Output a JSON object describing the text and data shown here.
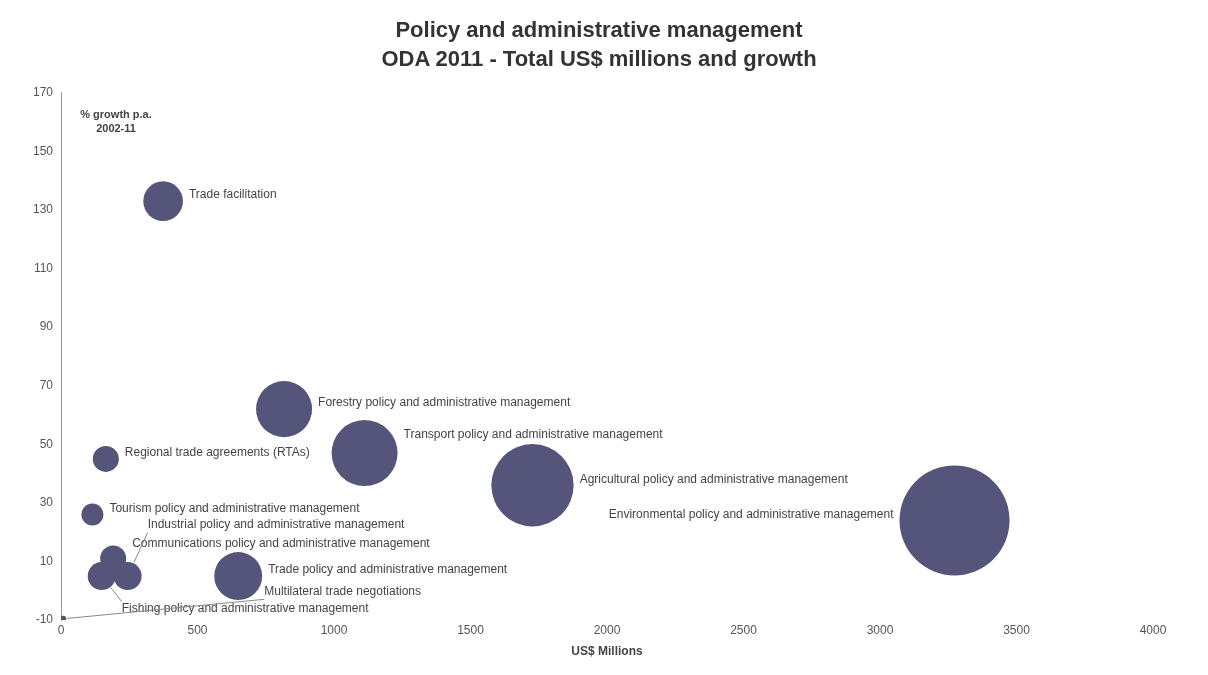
{
  "chart_data": {
    "type": "bubble",
    "title": "Policy and administrative management",
    "subtitle": "ODA 2011 - Total US$ millions and growth",
    "xlabel": "US$ Millions",
    "ylabel": "% growth p.a. 2002-11",
    "xlim": [
      0,
      4000
    ],
    "xticks": [
      0,
      500,
      1000,
      1500,
      2000,
      2500,
      3000,
      3500,
      4000
    ],
    "ylim": [
      -10,
      170
    ],
    "yticks": [
      -10,
      10,
      30,
      50,
      70,
      90,
      110,
      130,
      150,
      170
    ],
    "grid": false,
    "legend": false,
    "series": [
      {
        "name": "Trade facilitation",
        "color": "#55547a",
        "x": [
          374
        ],
        "values": [
          133
        ],
        "sizes": [
          0.13
        ]
      },
      {
        "name": "Forestry policy and administrative management",
        "color": "#55547a",
        "x": [
          817
        ],
        "values": [
          62
        ],
        "sizes": [
          0.26
        ]
      },
      {
        "name": "Regional trade agreements (RTAs)",
        "color": "#55547a",
        "x": [
          164
        ],
        "values": [
          45
        ],
        "sizes": [
          0.056
        ]
      },
      {
        "name": "Transport policy and administrative management",
        "color": "#55547a",
        "x": [
          1112
        ],
        "values": [
          47
        ],
        "sizes": [
          0.36
        ]
      },
      {
        "name": "Agricultural policy and administrative management",
        "color": "#55547a",
        "x": [
          1727
        ],
        "values": [
          36
        ],
        "sizes": [
          0.56
        ]
      },
      {
        "name": "Tourism policy and administrative management",
        "color": "#55547a",
        "x": [
          115
        ],
        "values": [
          26
        ],
        "sizes": [
          0.04
        ]
      },
      {
        "name": "Environmental policy and administrative management",
        "color": "#55547a",
        "x": [
          3273
        ],
        "values": [
          24
        ],
        "sizes": [
          1
        ]
      },
      {
        "name": "Communications policy and administrative management",
        "color": "#55547a",
        "x": [
          191
        ],
        "values": [
          11
        ],
        "sizes": [
          0.056
        ]
      },
      {
        "name": "Fishing policy and administrative management",
        "color": "#55547a",
        "x": [
          149
        ],
        "values": [
          5
        ],
        "sizes": [
          0.065
        ]
      },
      {
        "name": "Industrial policy and administrative management",
        "color": "#55547a",
        "x": [
          244
        ],
        "values": [
          5
        ],
        "sizes": [
          0.065
        ]
      },
      {
        "name": "Trade policy and administrative management",
        "color": "#55547a",
        "x": [
          649
        ],
        "values": [
          5
        ],
        "sizes": [
          0.19
        ]
      },
      {
        "name": "Multilateral trade negotiations",
        "color": "#55547a",
        "x": [
          8
        ],
        "values": [
          -9.6
        ],
        "sizes": [
          0.003
        ]
      }
    ]
  }
}
